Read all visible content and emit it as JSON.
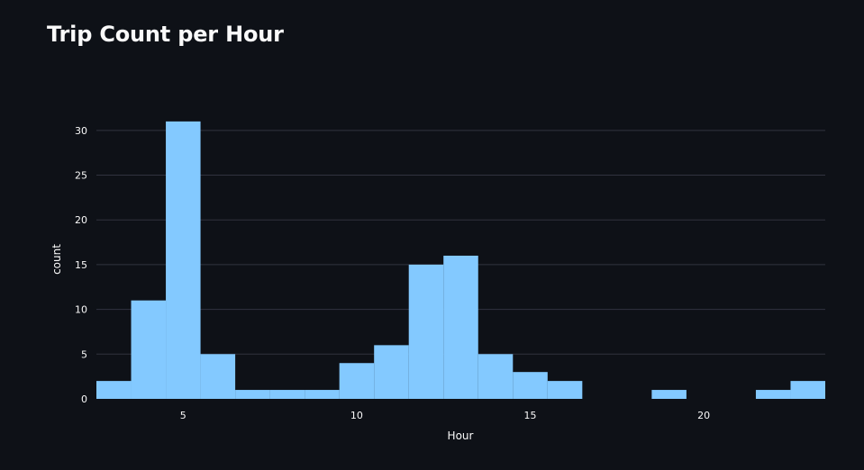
{
  "page": {
    "title": "Trip Count per Hour"
  },
  "chart_data": {
    "type": "bar",
    "title": "Trip Count per Hour",
    "xlabel": "Hour",
    "ylabel": "count",
    "xlim": [
      2.5,
      23.5
    ],
    "ylim": [
      0,
      33
    ],
    "xticks": [
      5,
      10,
      15,
      20
    ],
    "yticks": [
      0,
      5,
      10,
      15,
      20,
      25,
      30
    ],
    "grid": true,
    "bar_color": "#83c9ff",
    "background": "#0e1117",
    "gridline_color": "#31333f",
    "bins": [
      {
        "start": 2.5,
        "end": 3.5,
        "value": 2
      },
      {
        "start": 3.5,
        "end": 4.5,
        "value": 11
      },
      {
        "start": 4.5,
        "end": 5.5,
        "value": 31
      },
      {
        "start": 5.5,
        "end": 6.5,
        "value": 5
      },
      {
        "start": 6.5,
        "end": 7.5,
        "value": 1
      },
      {
        "start": 7.5,
        "end": 8.5,
        "value": 1
      },
      {
        "start": 8.5,
        "end": 9.5,
        "value": 1
      },
      {
        "start": 9.5,
        "end": 10.5,
        "value": 4
      },
      {
        "start": 10.5,
        "end": 11.5,
        "value": 6
      },
      {
        "start": 11.5,
        "end": 12.5,
        "value": 15
      },
      {
        "start": 12.5,
        "end": 13.5,
        "value": 16
      },
      {
        "start": 13.5,
        "end": 14.5,
        "value": 5
      },
      {
        "start": 14.5,
        "end": 15.5,
        "value": 3
      },
      {
        "start": 15.5,
        "end": 16.5,
        "value": 2
      },
      {
        "start": 18.5,
        "end": 19.5,
        "value": 1
      },
      {
        "start": 21.5,
        "end": 22.5,
        "value": 1
      },
      {
        "start": 22.5,
        "end": 23.5,
        "value": 2
      }
    ]
  }
}
